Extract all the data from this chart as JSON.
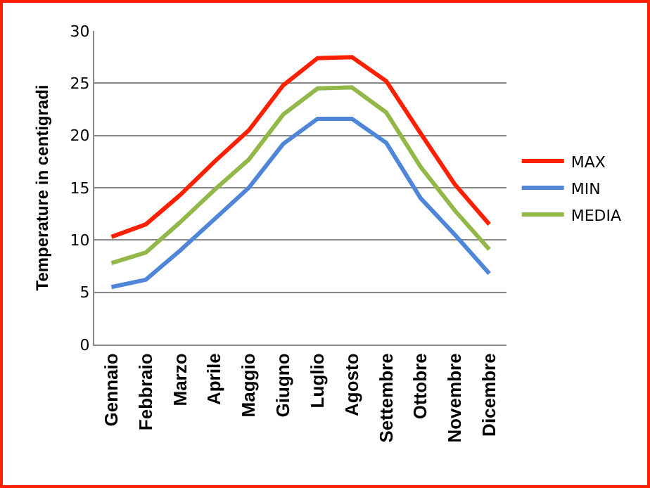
{
  "chart_data": {
    "type": "line",
    "ylabel": "Temperature in centigradi",
    "categories": [
      "Gennaio",
      "Febbraio",
      "Marzo",
      "Aprile",
      "Maggio",
      "Giugno",
      "Luglio",
      "Agosto",
      "Settembre",
      "Ottobre",
      "Novembre",
      "Dicembre"
    ],
    "series": [
      {
        "name": "MAX",
        "color": "#ff2000",
        "values": [
          10.3,
          11.5,
          14.3,
          17.5,
          20.5,
          24.8,
          27.4,
          27.5,
          25.2,
          20.2,
          15.3,
          11.5
        ]
      },
      {
        "name": "MIN",
        "color": "#4f86d8",
        "values": [
          5.5,
          6.2,
          9.0,
          12.0,
          15.0,
          19.2,
          21.6,
          21.6,
          19.3,
          14.0,
          10.5,
          6.8
        ]
      },
      {
        "name": "MEDIA",
        "color": "#92b84a",
        "values": [
          7.8,
          8.8,
          11.7,
          14.8,
          17.7,
          22.0,
          24.5,
          24.6,
          22.2,
          17.0,
          12.8,
          9.1
        ]
      }
    ],
    "ylim": [
      0,
      30
    ],
    "yticks": [
      0,
      5,
      10,
      15,
      20,
      25,
      30
    ],
    "grid": "y",
    "legend": "right",
    "marker": "none",
    "line_style": "solid"
  }
}
